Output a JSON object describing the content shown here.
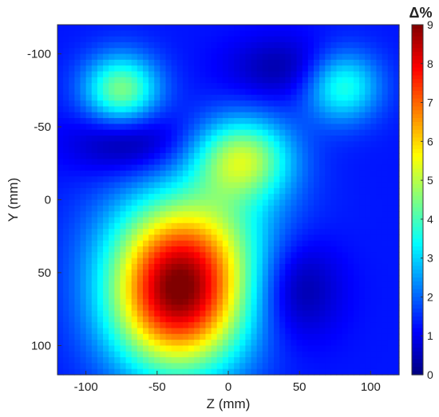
{
  "chart_data": {
    "type": "heatmap",
    "xlabel": "Z (mm)",
    "ylabel": "Y (mm)",
    "xlim": [
      -120,
      120
    ],
    "ylim": [
      -120,
      120
    ],
    "y_axis_reversed": true,
    "x_ticks": [
      -100,
      -50,
      0,
      50,
      100
    ],
    "y_ticks": [
      -100,
      -50,
      0,
      50,
      100
    ],
    "colorbar": {
      "title": "Δ%",
      "min": 0,
      "max": 9,
      "ticks": [
        0,
        1,
        2,
        3,
        4,
        5,
        6,
        7,
        8,
        9
      ],
      "colormap": "jet"
    },
    "background_level": 1.3,
    "field_features": [
      {
        "kind": "peak",
        "z": -35,
        "y": 65,
        "value": 8.7
      },
      {
        "kind": "peak",
        "z": -75,
        "y": -75,
        "value": 4.5
      },
      {
        "kind": "peak",
        "z": 80,
        "y": -78,
        "value": 3.8
      },
      {
        "kind": "peak",
        "z": 10,
        "y": -28,
        "value": 4.9
      },
      {
        "kind": "trough",
        "z": 48,
        "y": 60,
        "value": 0.3
      },
      {
        "kind": "trough",
        "z": -70,
        "y": -40,
        "value": 0.3
      },
      {
        "kind": "trough",
        "z": 40,
        "y": -90,
        "value": 0.5
      }
    ]
  }
}
